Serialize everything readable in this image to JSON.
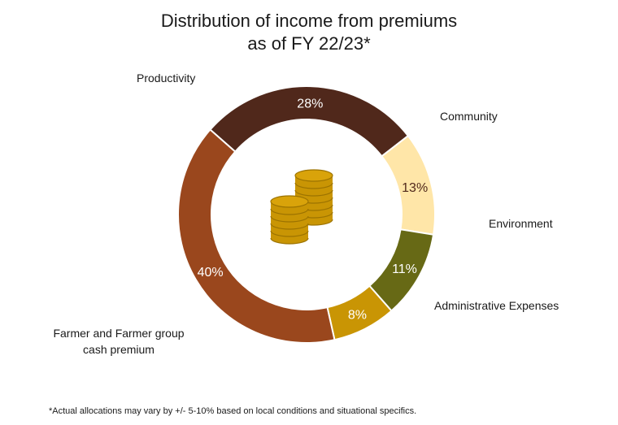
{
  "chart_data": {
    "type": "pie",
    "variant": "donut",
    "title_lines": [
      "Distribution of income from premiums",
      "as of FY 22/23*"
    ],
    "slices": [
      {
        "label": "Productivity",
        "value": 28,
        "value_label": "28%",
        "color": "#50281b"
      },
      {
        "label": "Community",
        "value": 13,
        "value_label": "13%",
        "color": "#ffe6a8"
      },
      {
        "label": "Environment",
        "value": 11,
        "value_label": "11%",
        "color": "#676915"
      },
      {
        "label": "Administrative Expenses",
        "value": 8,
        "value_label": "8%",
        "color": "#c99504"
      },
      {
        "label_lines": [
          "Farmer and Farmer group",
          "cash premium"
        ],
        "value": 40,
        "value_label": "40%",
        "color": "#9a471d"
      }
    ],
    "center_icon": "coins-icon",
    "footnote": "*Actual allocations may vary by +/- 5-10% based on local conditions and situational specifics."
  }
}
